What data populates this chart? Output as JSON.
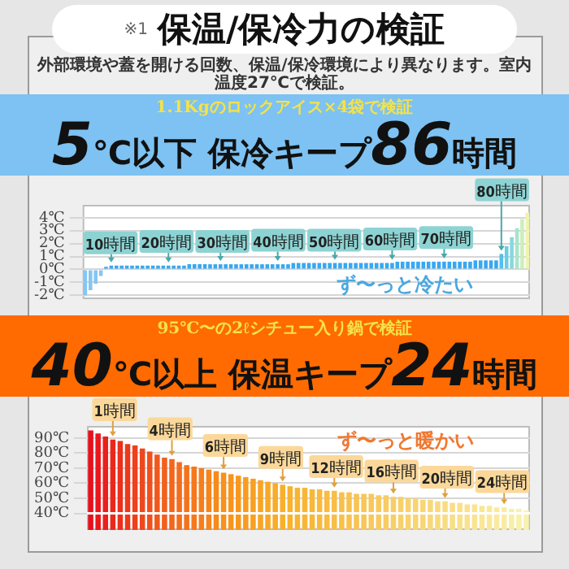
{
  "chart_data": [
    {
      "type": "other",
      "title": "保温/保冷力の検証",
      "subtitle": "外部環境や蓋を開ける回数、保温/保冷環境により異なります。室内温度27℃で検証。",
      "annotations": [
        "※1"
      ]
    },
    {
      "type": "bar",
      "title": "5℃以下 保冷キープ86時間",
      "subtitle": "1.1Kgのロックアイス×4袋で検証",
      "categories": [
        null,
        null,
        null,
        null,
        null,
        null,
        null,
        null,
        null,
        null,
        null,
        null,
        null,
        null,
        null,
        null,
        null,
        null,
        null,
        null,
        null,
        null,
        null,
        null,
        null,
        null,
        null,
        null,
        null,
        null,
        null,
        null,
        null,
        null,
        null,
        null,
        null,
        null,
        null,
        null,
        null,
        null,
        null,
        null,
        null,
        null,
        null,
        null,
        null,
        null,
        null,
        null,
        null,
        null,
        null,
        null,
        null,
        null,
        null,
        null,
        null,
        null,
        null,
        null,
        null,
        null,
        null,
        null,
        null,
        null,
        null,
        null,
        null,
        null,
        null,
        null,
        null,
        null,
        null,
        null,
        null,
        null,
        null,
        null,
        null,
        null
      ],
      "values": [
        -2,
        -1.6,
        -1.1,
        -0.5,
        0.2,
        0.3,
        0.3,
        0.3,
        0.3,
        0.3,
        0.3,
        0.3,
        0.3,
        0.3,
        0.3,
        0.3,
        0.3,
        0.3,
        0.3,
        0.3,
        0.4,
        0.4,
        0.4,
        0.4,
        0.4,
        0.4,
        0.4,
        0.4,
        0.4,
        0.4,
        0.4,
        0.4,
        0.4,
        0.4,
        0.4,
        0.4,
        0.4,
        0.4,
        0.4,
        0.4,
        0.5,
        0.5,
        0.5,
        0.5,
        0.5,
        0.5,
        0.5,
        0.5,
        0.5,
        0.5,
        0.5,
        0.5,
        0.5,
        0.5,
        0.5,
        0.5,
        0.5,
        0.5,
        0.5,
        0.5,
        0.6,
        0.6,
        0.6,
        0.6,
        0.6,
        0.6,
        0.6,
        0.6,
        0.6,
        0.6,
        0.6,
        0.6,
        0.6,
        0.6,
        0.6,
        0.7,
        0.7,
        0.7,
        0.7,
        0.7,
        1.2,
        1.8,
        2.5,
        3.2,
        3.9,
        4.4
      ],
      "colors": [
        "#86c6f0",
        "#86c6f0",
        "#86c6f0",
        "#86c6f0",
        "#38a8f0",
        "#38a8f0",
        "#38a8f0",
        "#38a8f0",
        "#38a8f0",
        "#38a8f0",
        "#38a8f0",
        "#38a8f0",
        "#38a8f0",
        "#38a8f0",
        "#38a8f0",
        "#38a8f0",
        "#38a8f0",
        "#38a8f0",
        "#38a8f0",
        "#38a8f0",
        "#38a8f0",
        "#38a8f0",
        "#38a8f0",
        "#38a8f0",
        "#38a8f0",
        "#38a8f0",
        "#38a8f0",
        "#38a8f0",
        "#38a8f0",
        "#38a8f0",
        "#38a8f0",
        "#38a8f0",
        "#38a8f0",
        "#38a8f0",
        "#38a8f0",
        "#38a8f0",
        "#38a8f0",
        "#38a8f0",
        "#38a8f0",
        "#38a8f0",
        "#38a8f0",
        "#38a8f0",
        "#38a8f0",
        "#38a8f0",
        "#38a8f0",
        "#38a8f0",
        "#38a8f0",
        "#38a8f0",
        "#38a8f0",
        "#38a8f0",
        "#38a8f0",
        "#38a8f0",
        "#38a8f0",
        "#38a8f0",
        "#38a8f0",
        "#38a8f0",
        "#38a8f0",
        "#38a8f0",
        "#38a8f0",
        "#38a8f0",
        "#38a8f0",
        "#38a8f0",
        "#38a8f0",
        "#38a8f0",
        "#38a8f0",
        "#38a8f0",
        "#38a8f0",
        "#38a8f0",
        "#38a8f0",
        "#38a8f0",
        "#38a8f0",
        "#38a8f0",
        "#38a8f0",
        "#38a8f0",
        "#38a8f0",
        "#38a8f0",
        "#38a8f0",
        "#38a8f0",
        "#38a8f0",
        "#38a8f0",
        "#52c0ec",
        "#6ccce4",
        "#88d8dc",
        "#a8e4cc",
        "#cceebc",
        "#eef4b0"
      ],
      "ylim": [
        -2.3,
        5
      ],
      "yticks": [
        {
          "value": 4,
          "label": "4℃"
        },
        {
          "value": 3,
          "label": "3℃"
        },
        {
          "value": 2,
          "label": "2℃"
        },
        {
          "value": 1,
          "label": "1℃"
        },
        {
          "value": 0,
          "label": "0℃"
        },
        {
          "value": -1,
          "label": "-1℃"
        },
        {
          "value": -2,
          "label": "-2℃"
        }
      ],
      "grid": "y",
      "tick_labels": "y",
      "annotations": [
        "10時間",
        "20時間",
        "30時間",
        "40時間",
        "50時間",
        "60時間",
        "70時間",
        "80時間",
        "ず〜っと冷たい"
      ]
    },
    {
      "type": "bar",
      "title": "40℃以上 保温キープ24時間",
      "subtitle": "95℃〜の2ℓシチュー入り鍋で検証",
      "categories": [
        null,
        null,
        null,
        null,
        null,
        null,
        null,
        null,
        null,
        null,
        null,
        null,
        null,
        null,
        null,
        null,
        null,
        null,
        null,
        null,
        null,
        null,
        null,
        null,
        null,
        null,
        null,
        null,
        null,
        null,
        null,
        null,
        null,
        null,
        null,
        null,
        null,
        null,
        null,
        null,
        null,
        null,
        null,
        null,
        null,
        null,
        null,
        null,
        null,
        null,
        null,
        null,
        null,
        null,
        null,
        null,
        null,
        null,
        null,
        null
      ],
      "values": [
        95,
        93,
        91,
        89,
        88,
        86,
        85,
        83,
        81,
        79,
        77,
        76,
        74,
        72,
        71,
        70,
        69,
        68,
        67,
        66,
        65,
        64,
        63,
        62,
        61,
        60,
        59,
        58,
        57,
        57,
        56,
        56,
        55,
        55,
        54,
        54,
        53,
        53,
        53,
        52,
        52,
        51,
        51,
        50,
        50,
        49,
        49,
        48,
        48,
        47,
        47,
        46,
        46,
        45,
        45,
        44,
        44,
        43,
        43,
        42
      ],
      "colors": [
        "#e8101c",
        "#e9181c",
        "#ea201c",
        "#eb281c",
        "#ec301c",
        "#ed381c",
        "#ee401c",
        "#ef481c",
        "#f0501c",
        "#f1581c",
        "#f2601c",
        "#f3661c",
        "#f46c1c",
        "#f5721c",
        "#f6781c",
        "#f67e1c",
        "#f7841c",
        "#f78a1c",
        "#f8901c",
        "#f8941c",
        "#f8981e",
        "#f89c20",
        "#f8a022",
        "#f8a424",
        "#f8a826",
        "#f8ac28",
        "#f8b02a",
        "#f8b22e",
        "#f8b432",
        "#f8b636",
        "#f8b83a",
        "#f8ba3e",
        "#f8bc42",
        "#f8be46",
        "#f8c04a",
        "#f8c24e",
        "#f8c452",
        "#f8c656",
        "#f8c85a",
        "#f8ca5e",
        "#f8cc62",
        "#f8ce66",
        "#f8d06a",
        "#f8d26e",
        "#f8d472",
        "#f8d676",
        "#f8d87a",
        "#f8da7e",
        "#f8dc82",
        "#f8de86",
        "#f9e08a",
        "#f9e28e",
        "#f9e492",
        "#f9e696",
        "#f9e89a",
        "#f9ea9e",
        "#f9eca2",
        "#f9eea6",
        "#f9f0aa",
        "#f9f2ae"
      ],
      "ylim": [
        29,
        98
      ],
      "yticks": [
        {
          "value": 90,
          "label": "90℃"
        },
        {
          "value": 80,
          "label": "80℃"
        },
        {
          "value": 70,
          "label": "70℃"
        },
        {
          "value": 60,
          "label": "60℃"
        },
        {
          "value": 50,
          "label": "50℃"
        },
        {
          "value": 40,
          "label": "40℃"
        }
      ],
      "grid": "y",
      "tick_labels": "y",
      "ref_lines": [
        {
          "axis": "y",
          "value": 40,
          "color": "#ffffff"
        }
      ],
      "annotations": [
        "1時間",
        "4時間",
        "6時間",
        "9時間",
        "12時間",
        "16時間",
        "20時間",
        "24時間",
        "ず〜っと暖かい"
      ]
    }
  ]
}
